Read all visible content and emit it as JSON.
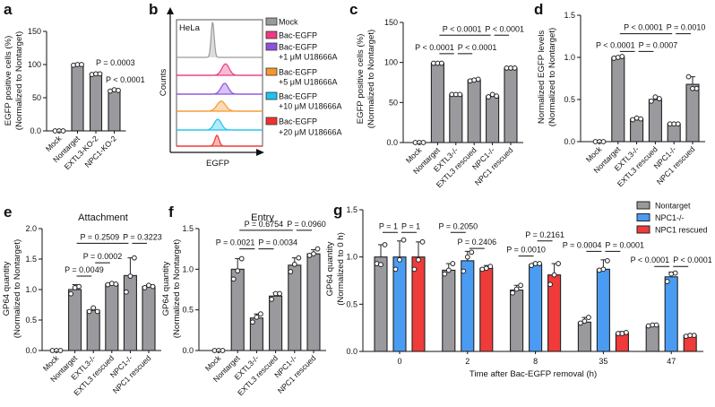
{
  "panel_letters": [
    "a",
    "b",
    "c",
    "d",
    "e",
    "f",
    "g"
  ],
  "chart_data": [
    {
      "id": "a",
      "type": "bar",
      "ylabel": [
        "EGFP positive cells (%)",
        "(Normalized to Nontarget)"
      ],
      "ylim": [
        0,
        150
      ],
      "yticks": [
        0,
        50,
        100,
        150
      ],
      "categories": [
        "Mock",
        "Nontarget",
        "EXTL3-KO-2",
        "NPC1-KO-2"
      ],
      "values": [
        0,
        100,
        86,
        61
      ],
      "errors": [
        0,
        1,
        1,
        1
      ],
      "points": [
        [
          0,
          0,
          0
        ],
        [
          99,
          100,
          100
        ],
        [
          85,
          86,
          86
        ],
        [
          60,
          62,
          61
        ]
      ],
      "bar_color": "#9a9a9e",
      "annotations": [
        "P = 0.0003",
        "P < 0.0001"
      ],
      "brackets": []
    },
    {
      "id": "c",
      "type": "bar",
      "ylabel": [
        "EGFP positive cells (%)",
        "(Normalized to Nontarget)"
      ],
      "ylim": [
        0,
        150
      ],
      "yticks": [
        0,
        50,
        100,
        150
      ],
      "categories": [
        "Mock",
        "Nontarget",
        "EXTL3-/-",
        "EXTL3 rescued",
        "NPC1-/-",
        "NPC1 rescued"
      ],
      "values": [
        0,
        99,
        60,
        78,
        58,
        93
      ],
      "errors": [
        0,
        0.5,
        0.5,
        1.5,
        2,
        0.5
      ],
      "points": [
        [
          0,
          0,
          0
        ],
        [
          99,
          99,
          99
        ],
        [
          60,
          60,
          60
        ],
        [
          77,
          78,
          79
        ],
        [
          57,
          60,
          58
        ],
        [
          93,
          93,
          93
        ]
      ],
      "bar_color": "#9a9a9e",
      "brackets": [
        {
          "from": 1,
          "to": 2,
          "y": 111,
          "text": "P < 0.0001"
        },
        {
          "from": 2,
          "to": 3,
          "y": 111,
          "text": "P < 0.0001"
        },
        {
          "from": 1,
          "to": 4,
          "y": 134,
          "text": "P < 0.0001"
        },
        {
          "from": 4,
          "to": 5,
          "y": 134,
          "text": "P < 0.0001"
        }
      ]
    },
    {
      "id": "d",
      "type": "bar",
      "ylabel": [
        "Normalized EGFP levels",
        "(Normalized to Nontarget)"
      ],
      "ylim": [
        0,
        1.5
      ],
      "yticks": [
        0.0,
        0.5,
        1.0,
        1.5
      ],
      "categories": [
        "Mock",
        "Nontarget",
        "EXTL3-/-",
        "EXTL3 rescued",
        "NPC1-/-",
        "NPC1 rescued"
      ],
      "values": [
        0,
        1.0,
        0.27,
        0.5,
        0.21,
        0.68
      ],
      "errors": [
        0,
        0.01,
        0.01,
        0.03,
        0.005,
        0.09
      ],
      "points": [
        [
          0,
          0,
          0
        ],
        [
          0.99,
          1.0,
          1.01
        ],
        [
          0.26,
          0.28,
          0.27
        ],
        [
          0.48,
          0.53,
          0.51
        ],
        [
          0.21,
          0.21,
          0.21
        ],
        [
          0.77,
          0.63,
          0.63
        ]
      ],
      "bar_color": "#9a9a9e",
      "brackets": [
        {
          "from": 1,
          "to": 2,
          "y": 1.07,
          "text": "P < 0.0001"
        },
        {
          "from": 2,
          "to": 3,
          "y": 1.07,
          "text": "P = 0.0007"
        },
        {
          "from": 1,
          "to": 4,
          "y": 1.28,
          "text": "P < 0.0001"
        },
        {
          "from": 4,
          "to": 5,
          "y": 1.28,
          "text": "P = 0.0010"
        }
      ]
    },
    {
      "id": "e",
      "type": "bar",
      "title": "Attachment",
      "ylabel": [
        "GP64 quantity",
        "(Normalized to Nontarget)"
      ],
      "ylim": [
        0,
        2.0
      ],
      "yticks": [
        0.0,
        0.5,
        1.0,
        1.5,
        2.0
      ],
      "categories": [
        "Mock",
        "Nontarget",
        "EXTL3-/-",
        "EXTL3 rescued",
        "NPC1-/-",
        "NPC1 rescued"
      ],
      "values": [
        0,
        1.0,
        0.66,
        1.09,
        1.23,
        1.05
      ],
      "errors": [
        0,
        0.08,
        0.04,
        0.02,
        0.29,
        0.03
      ],
      "points": [
        [
          0,
          0,
          0
        ],
        [
          0.93,
          1.03,
          1.05
        ],
        [
          0.64,
          0.7,
          0.64
        ],
        [
          1.08,
          1.1,
          1.09
        ],
        [
          0.96,
          1.22,
          1.52
        ],
        [
          1.03,
          1.07,
          1.05
        ]
      ],
      "bar_color": "#9a9a9e",
      "brackets": [
        {
          "from": 1,
          "to": 2,
          "y": 1.22,
          "text": "P = 0.0049"
        },
        {
          "from": 2,
          "to": 3,
          "y": 1.44,
          "text": "P = 0.0002"
        },
        {
          "from": 1,
          "to": 4,
          "y": 1.76,
          "text": "P = 0.2509"
        },
        {
          "from": 4,
          "to": 5,
          "y": 1.76,
          "text": "P = 0.3223"
        }
      ]
    },
    {
      "id": "f",
      "type": "bar",
      "title": "Entry",
      "ylabel": [
        "GP64 quantity",
        "(Normalized to Nontarget)"
      ],
      "ylim": [
        0,
        1.5
      ],
      "yticks": [
        0.0,
        0.5,
        1.0,
        1.5
      ],
      "categories": [
        "Mock",
        "Nontarget",
        "EXTL3-/-",
        "EXTL3 rescued",
        "NPC1-/-",
        "NPC1 rescued"
      ],
      "values": [
        0,
        1.0,
        0.4,
        0.67,
        1.05,
        1.19
      ],
      "errors": [
        0,
        0.13,
        0.05,
        0.04,
        0.09,
        0.05
      ],
      "points": [
        [
          0,
          0,
          0
        ],
        [
          0.88,
          0.98,
          1.13
        ],
        [
          0.35,
          0.41,
          0.45
        ],
        [
          0.63,
          0.7,
          0.7
        ],
        [
          0.97,
          1.06,
          1.14
        ],
        [
          1.17,
          1.19,
          1.25
        ]
      ],
      "bar_color": "#9a9a9e",
      "brackets": [
        {
          "from": 1,
          "to": 2,
          "y": 1.25,
          "text": "P = 0.0021"
        },
        {
          "from": 2,
          "to": 3,
          "y": 1.25,
          "text": "P = 0.0034"
        },
        {
          "from": 1,
          "to": 4,
          "y": 1.48,
          "text": "P = 0.6754"
        },
        {
          "from": 4,
          "to": 5,
          "y": 1.48,
          "text": "P = 0.0960"
        }
      ]
    },
    {
      "id": "g",
      "type": "bar",
      "ylabel": [
        "GP64 quantity",
        "(Normalized to 0 h)"
      ],
      "xlabel": "Time after Bac-EGFP removal (h)",
      "ylim": [
        0,
        1.5
      ],
      "yticks": [
        0.0,
        0.5,
        1.0,
        1.5
      ],
      "categories": [
        "0",
        "2",
        "8",
        "35",
        "47"
      ],
      "legend_position": "top-right",
      "series": [
        {
          "name": "Nontarget",
          "color": "#9a9a9e",
          "values": [
            1.0,
            0.86,
            0.65,
            0.31,
            0.27
          ],
          "errors": [
            0.13,
            0.07,
            0.05,
            0.05,
            0.01
          ],
          "points": [
            [
              0.93,
              0.92,
              1.13
            ],
            [
              0.82,
              0.86,
              0.93
            ],
            [
              0.62,
              0.66,
              0.7
            ],
            [
              0.3,
              0.32,
              0.36
            ],
            [
              0.27,
              0.28,
              0.28
            ]
          ]
        },
        {
          "name": "NPC1-/-",
          "color": "#4a9cf3",
          "values": [
            1.0,
            0.96,
            0.92,
            0.87,
            0.79
          ],
          "errors": [
            0.17,
            0.1,
            0.02,
            0.1,
            0.05
          ],
          "points": [
            [
              0.87,
              0.97,
              1.18
            ],
            [
              0.85,
              1.0,
              1.05
            ],
            [
              0.91,
              0.93,
              0.93
            ],
            [
              0.86,
              0.87,
              0.96
            ],
            [
              0.74,
              0.82,
              0.83
            ]
          ]
        },
        {
          "name": "NPC1 rescued",
          "color": "#f03b3b",
          "values": [
            1.0,
            0.88,
            0.81,
            0.19,
            0.17
          ],
          "errors": [
            0.16,
            0.03,
            0.12,
            0.02,
            0.01
          ],
          "points": [
            [
              0.87,
              0.97,
              1.16
            ],
            [
              0.87,
              0.88,
              0.9
            ],
            [
              0.71,
              0.81,
              0.93
            ],
            [
              0.19,
              0.19,
              0.2
            ],
            [
              0.16,
              0.17,
              0.17
            ]
          ]
        }
      ],
      "brackets": [
        {
          "group": 0,
          "from": 0,
          "to": 1,
          "y": 1.26,
          "text": "P = 1"
        },
        {
          "group": 0,
          "from": 1,
          "to": 2,
          "y": 1.26,
          "text": "P = 1"
        },
        {
          "group": 1,
          "from": 0,
          "to": 1,
          "y": 1.26,
          "text": "P = 0.2050"
        },
        {
          "group": 1,
          "from": 1,
          "to": 2,
          "y": 1.09,
          "text": "P = 0.2406"
        },
        {
          "group": 2,
          "from": 0,
          "to": 1,
          "y": 1.01,
          "text": "P = 0.0010"
        },
        {
          "group": 2,
          "from": 1,
          "to": 2,
          "y": 1.17,
          "text": "P = 0.2161"
        },
        {
          "group": 3,
          "from": 0,
          "to": 1,
          "y": 1.06,
          "text": "P = 0.0004"
        },
        {
          "group": 3,
          "from": 1,
          "to": 2,
          "y": 1.06,
          "text": "P = 0.0001"
        },
        {
          "group": 4,
          "from": 0,
          "to": 1,
          "y": 0.9,
          "text": "P < 0.0001"
        },
        {
          "group": 4,
          "from": 1,
          "to": 2,
          "y": 0.9,
          "text": "P < 0.0001"
        }
      ]
    },
    {
      "id": "b",
      "type": "histogram",
      "sample_label": "HeLa",
      "xlabel": "EGFP",
      "ylabel": "Counts",
      "series": [
        {
          "name": "Mock",
          "sublabel": "",
          "color": "#9a9a9e",
          "peak": 0.42,
          "height": 1.0,
          "width": 0.025
        },
        {
          "name": "Bac-EGFP",
          "sublabel": "",
          "color": "#ec3b83",
          "peak": 0.57,
          "height": 0.32,
          "width": 0.06
        },
        {
          "name": "Bac-EGFP",
          "sublabel": "+1 μM U18666A",
          "color": "#8b52e0",
          "peak": 0.56,
          "height": 0.3,
          "width": 0.06
        },
        {
          "name": "Bac-EGFP",
          "sublabel": "+5 μM U18666A",
          "color": "#f7962e",
          "peak": 0.52,
          "height": 0.28,
          "width": 0.07
        },
        {
          "name": "Bac-EGFP",
          "sublabel": "+10 μM U18666A",
          "color": "#1fc2ef",
          "peak": 0.48,
          "height": 0.3,
          "width": 0.06
        },
        {
          "name": "Bac-EGFP",
          "sublabel": "+20 μM U18666A",
          "color": "#f23030",
          "peak": 0.47,
          "height": 0.3,
          "width": 0.035
        }
      ]
    }
  ]
}
